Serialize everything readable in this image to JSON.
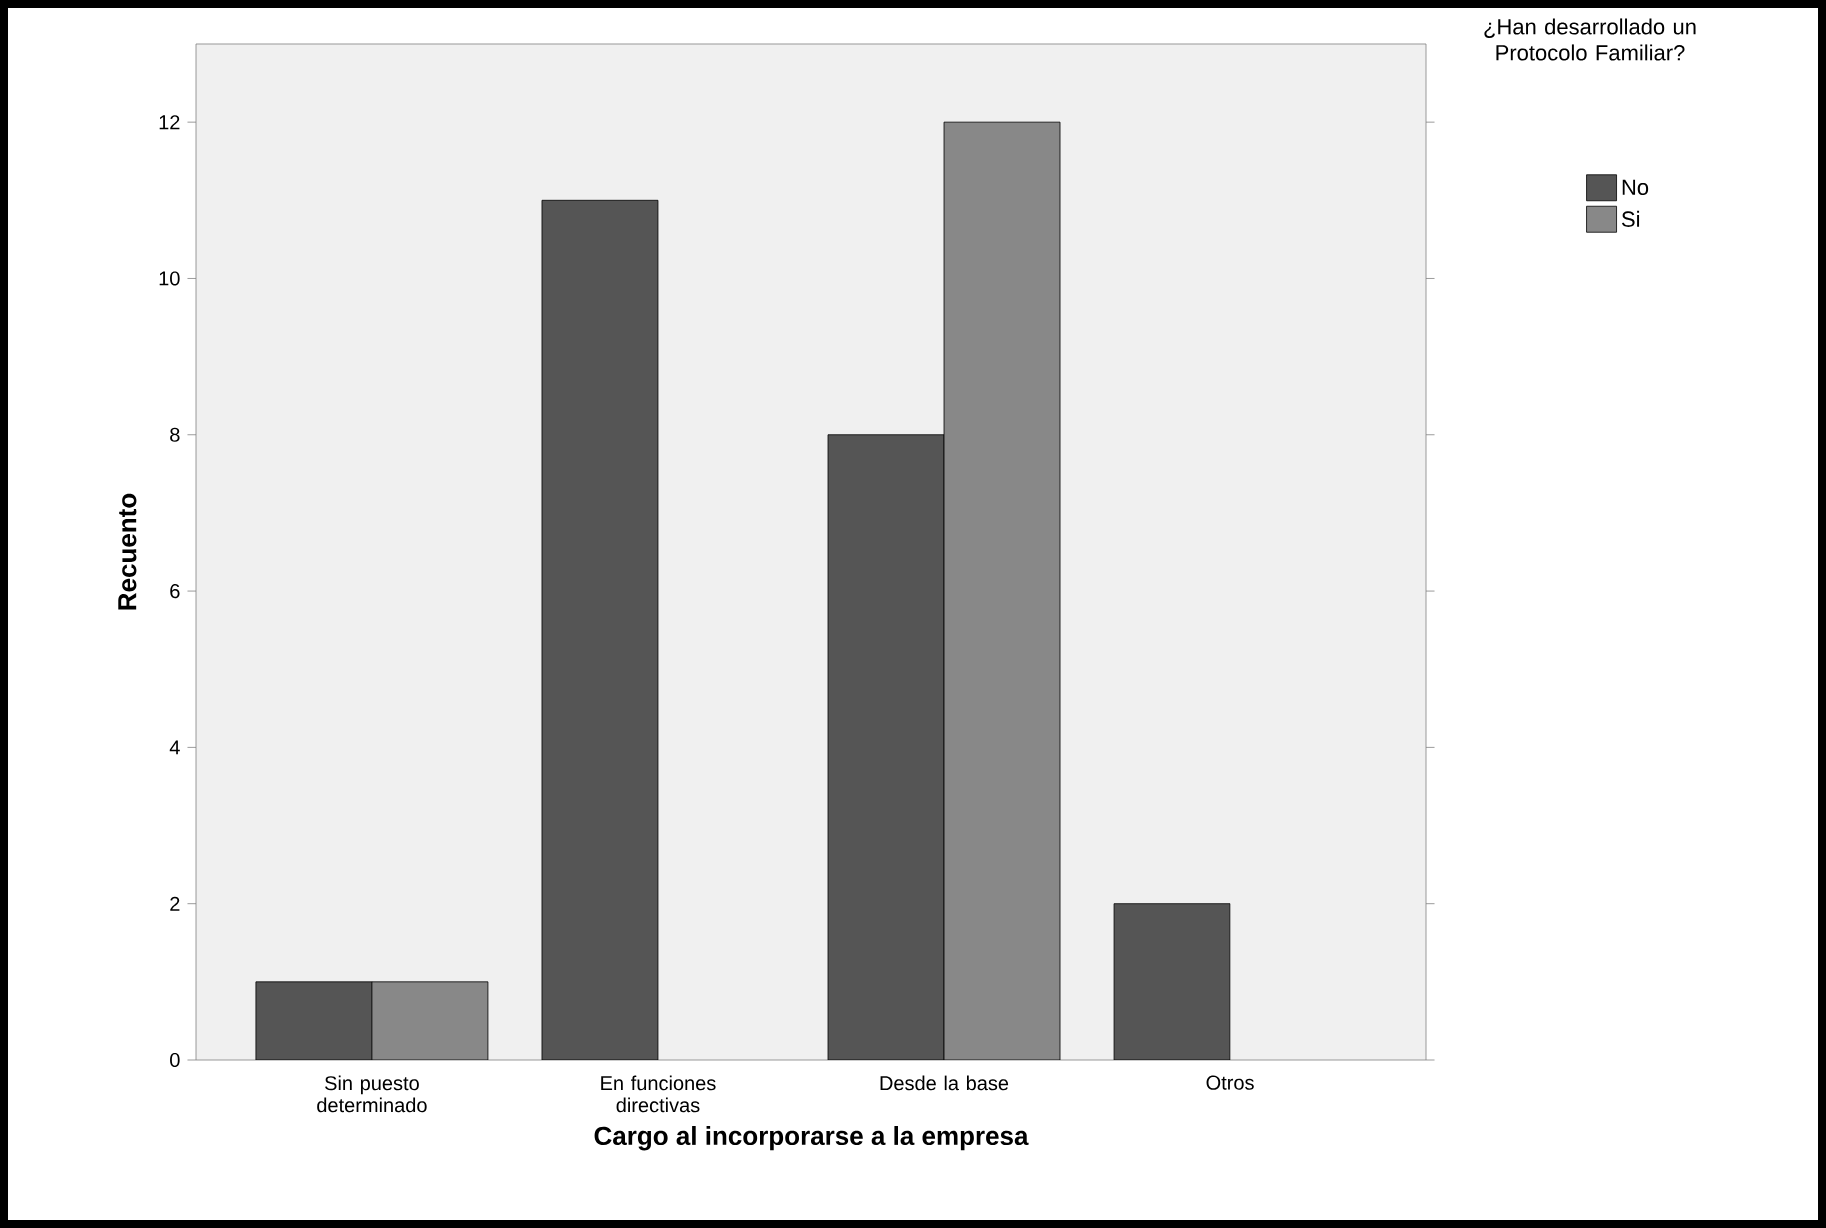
{
  "chart_data": {
    "type": "bar",
    "xlabel": "Cargo al incorporarse a la empresa",
    "ylabel": "Recuento",
    "legend_title": "¿Han desarrollado un Protocolo Familiar?",
    "categories": [
      "Sin puesto determinado",
      "En funciones directivas",
      "Desde la base",
      "Otros"
    ],
    "series": [
      {
        "name": "No",
        "color": "#555555",
        "values": [
          1,
          11,
          8,
          2
        ]
      },
      {
        "name": "Si",
        "color": "#888888",
        "values": [
          1,
          null,
          12,
          null
        ]
      }
    ],
    "ylim": [
      0,
      13
    ],
    "yticks": [
      0,
      2,
      4,
      6,
      8,
      10,
      12
    ],
    "grid": false,
    "legend": "top right"
  }
}
